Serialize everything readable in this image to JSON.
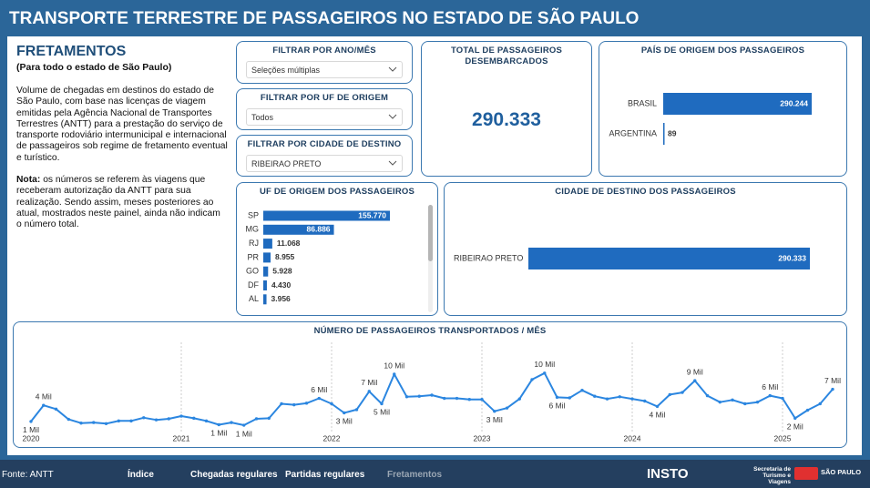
{
  "header": {
    "title": "TRANSPORTE TERRESTRE DE PASSAGEIROS NO ESTADO DE SÃO PAULO"
  },
  "intro": {
    "title": "FRETAMENTOS",
    "subtitle": "(Para todo o estado de São Paulo)",
    "paragraph": "Volume de chegadas em destinos do estado de São Paulo, com base nas licenças de viagem emitidas pela Agência Nacional de Transportes Terrestres (ANTT) para a prestação do serviço de transporte rodoviário intermunicipal e internacional de passageiros sob regime de fretamento eventual e turístico.",
    "note_label": "Nota:",
    "note_text": "os números se referem às viagens que receberam autorização da ANTT para sua realização. Sendo assim, meses posteriores ao atual, mostrados neste painel, ainda não indicam o número total."
  },
  "filters": [
    {
      "title": "FILTRAR POR ANO/MÊS",
      "selection": "Seleções múltiplas"
    },
    {
      "title": "FILTRAR POR UF DE ORIGEM",
      "selection": "Todos"
    },
    {
      "title": "FILTRAR POR CIDADE DE DESTINO",
      "selection": "RIBEIRAO PRETO"
    }
  ],
  "kpi": {
    "title": "TOTAL DE PASSAGEIROS DESEMBARCADOS",
    "value": "290.333"
  },
  "chart_data": [
    {
      "type": "hbar",
      "title": "PAÍS DE ORIGEM DOS PASSAGEIROS",
      "categories": [
        "BRASIL",
        "ARGENTINA"
      ],
      "values": [
        290244,
        89
      ],
      "value_labels": [
        "290.244",
        "89"
      ],
      "color": "#1f6bbf"
    },
    {
      "type": "hbar",
      "title": "UF DE ORIGEM DOS PASSAGEIROS",
      "categories": [
        "SP",
        "MG",
        "RJ",
        "PR",
        "GO",
        "DF",
        "AL"
      ],
      "values": [
        155770,
        86886,
        11068,
        8955,
        5928,
        4430,
        3956
      ],
      "value_labels": [
        "155.770",
        "86.886",
        "11.068",
        "8.955",
        "5.928",
        "4.430",
        "3.956"
      ],
      "color": "#1f6bbf"
    },
    {
      "type": "hbar",
      "title": "CIDADE DE DESTINO DOS PASSAGEIROS",
      "categories": [
        "RIBEIRAO PRETO"
      ],
      "values": [
        290333
      ],
      "value_labels": [
        "290.333"
      ],
      "color": "#1f6bbf"
    },
    {
      "type": "line",
      "title": "NÚMERO DE PASSAGEIROS TRANSPORTADOS / MÊS",
      "color": "#2b86e0",
      "categories": [
        "2020",
        null,
        null,
        null,
        null,
        null,
        null,
        null,
        null,
        null,
        null,
        null,
        "2021",
        null,
        null,
        null,
        null,
        null,
        null,
        null,
        null,
        null,
        null,
        null,
        "2022",
        null,
        null,
        null,
        null,
        null,
        null,
        null,
        null,
        null,
        null,
        null,
        "2023",
        null,
        null,
        null,
        null,
        null,
        null,
        null,
        null,
        null,
        null,
        null,
        "2024",
        null,
        null,
        null,
        null,
        null,
        null,
        null,
        null,
        null,
        null,
        null,
        "2025",
        null,
        null,
        null,
        null
      ],
      "values": [
        1.2,
        4.2,
        3.5,
        1.6,
        0.9,
        1.0,
        0.8,
        1.3,
        1.3,
        1.9,
        1.5,
        1.7,
        2.2,
        1.8,
        1.3,
        0.6,
        1.0,
        0.5,
        1.7,
        1.8,
        4.5,
        4.3,
        4.6,
        5.5,
        4.5,
        2.8,
        3.4,
        6.8,
        4.5,
        10.0,
        5.8,
        5.9,
        6.1,
        5.5,
        5.5,
        5.3,
        5.3,
        3.1,
        3.7,
        5.4,
        9.0,
        10.2,
        5.7,
        5.6,
        7.0,
        5.9,
        5.4,
        5.8,
        5.4,
        5.0,
        4.0,
        6.2,
        6.6,
        8.8,
        6.0,
        4.8,
        5.2,
        4.5,
        4.8,
        6.0,
        5.5,
        1.8,
        3.3,
        4.5,
        7.2
      ],
      "value_labels": [
        "1 Mil",
        "4 Mil",
        null,
        null,
        null,
        null,
        null,
        null,
        null,
        null,
        null,
        null,
        null,
        null,
        null,
        "1 Mil",
        null,
        "1 Mil",
        null,
        null,
        null,
        null,
        null,
        "6 Mil",
        null,
        "3 Mil",
        null,
        "7 Mil",
        "5 Mil",
        "10 Mil",
        null,
        null,
        null,
        null,
        null,
        null,
        null,
        "3 Mil",
        null,
        null,
        null,
        "10 Mil",
        "6 Mil",
        null,
        null,
        null,
        null,
        null,
        null,
        null,
        "4 Mil",
        null,
        null,
        "9 Mil",
        null,
        null,
        null,
        null,
        null,
        "6 Mil",
        null,
        "2 Mil",
        null,
        null,
        "7 Mil"
      ]
    }
  ],
  "footer": {
    "source": "Fonte: ANTT",
    "nav": [
      "Índice",
      "Chegadas regulares",
      "Partidas regulares",
      "Fretamentos"
    ],
    "logos": [
      "INSTO",
      "Secretaria de Turismo e Viagens",
      "SÃO PAULO"
    ]
  }
}
